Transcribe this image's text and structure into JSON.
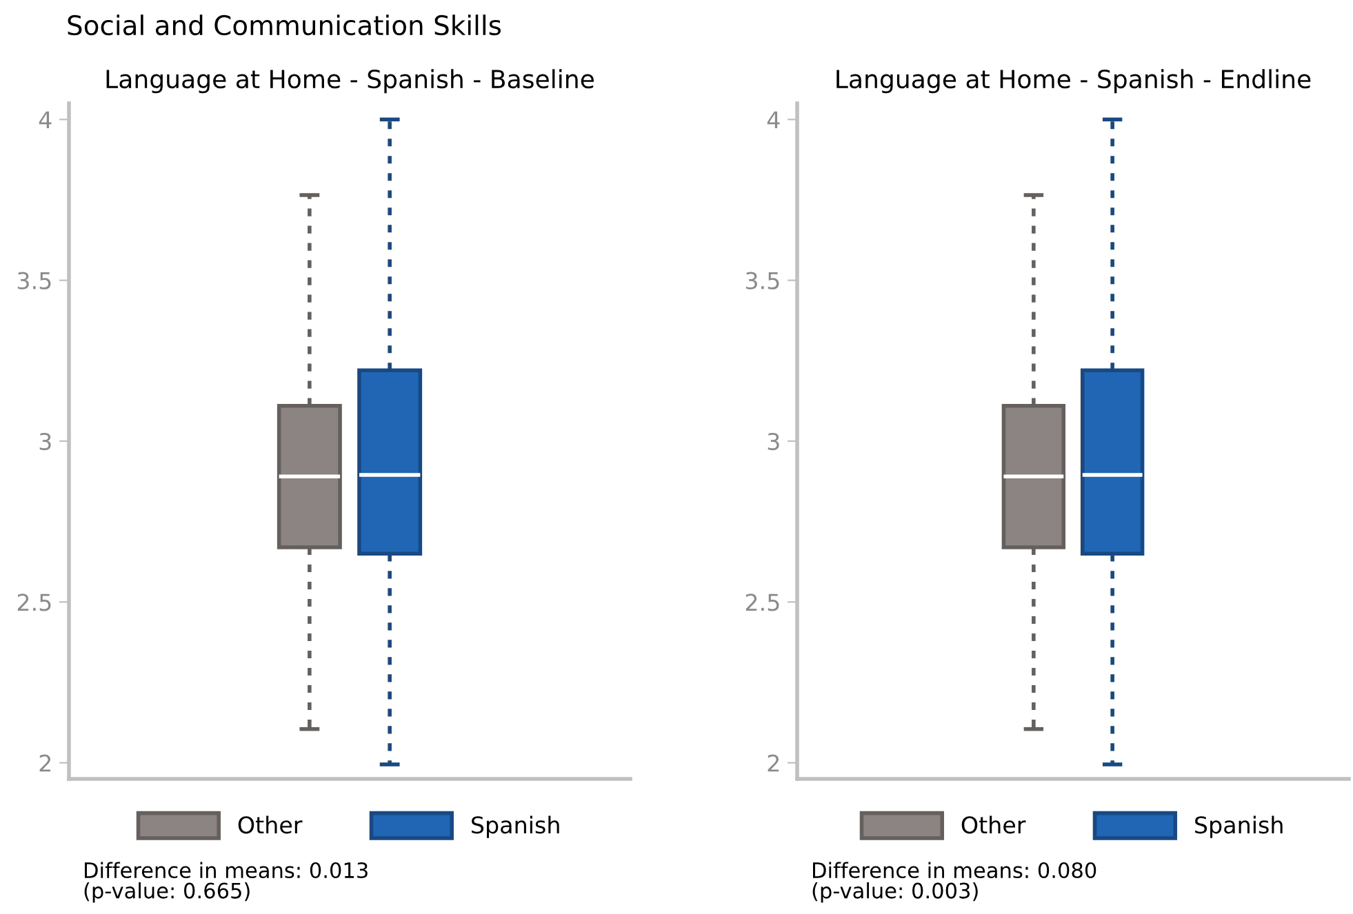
{
  "chart_data": [
    {
      "type": "box",
      "title": "Language at Home - Spanish - Baseline",
      "categories": [
        null
      ],
      "ylim": [
        1.95,
        4.05
      ],
      "yticks": [
        2,
        2.5,
        3,
        3.5,
        4
      ],
      "grid": false,
      "legend": "bottom",
      "line_style": "dotted",
      "annotations": [
        "Social and Communication Skills",
        "Difference in means: 0.013\n(p-value: 0.665)"
      ],
      "series": [
        {
          "name": "Other",
          "color": "#8c8482",
          "boxes": [
            {
              "low": 2.105,
              "q1": 2.67,
              "median": 2.89,
              "q3": 3.11,
              "high": 3.765
            }
          ]
        },
        {
          "name": "Spanish",
          "color": "#2166b5",
          "boxes": [
            {
              "low": 1.995,
              "q1": 2.65,
              "median": 2.895,
              "q3": 3.22,
              "high": 4.0
            }
          ]
        }
      ]
    },
    {
      "type": "box",
      "title": "Language at Home - Spanish - Endline",
      "categories": [
        null
      ],
      "ylim": [
        1.95,
        4.05
      ],
      "yticks": [
        2,
        2.5,
        3,
        3.5,
        4
      ],
      "grid": false,
      "legend": "bottom",
      "line_style": "dotted",
      "annotations": [
        "Difference in means: 0.080\n(p-value: 0.003)"
      ],
      "series": [
        {
          "name": "Other",
          "color": "#8c8482",
          "boxes": [
            {
              "low": 2.105,
              "q1": 2.67,
              "median": 2.89,
              "q3": 3.11,
              "high": 3.765
            }
          ]
        },
        {
          "name": "Spanish",
          "color": "#2166b5",
          "boxes": [
            {
              "low": 1.995,
              "q1": 2.65,
              "median": 2.895,
              "q3": 3.22,
              "high": 4.0
            }
          ]
        }
      ]
    }
  ]
}
